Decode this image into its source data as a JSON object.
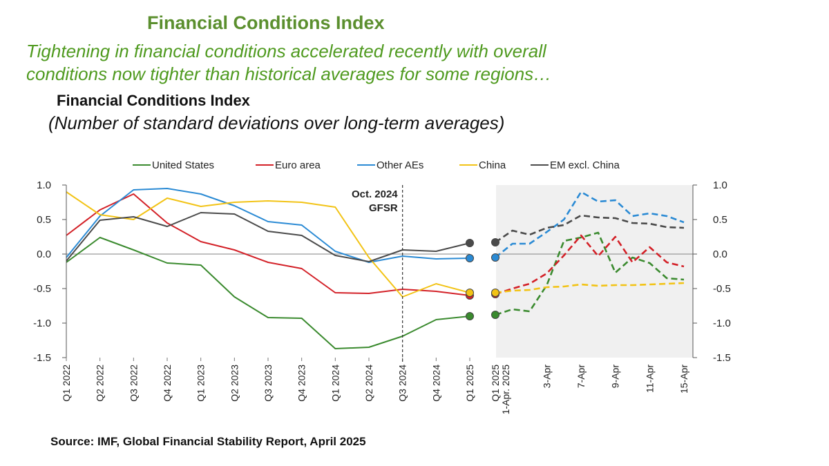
{
  "header": {
    "title": "Financial Conditions Index",
    "subtitle_line1": "Tightening in financial conditions accelerated recently with overall",
    "subtitle_line2": "conditions now tighter than historical averages for some regions…"
  },
  "source": "Source: IMF, Global Financial Stability Report, April 2025",
  "chart_data": {
    "type": "line",
    "title": "Financial Conditions Index",
    "subtitle": "(Number of standard deviations over long-term averages)",
    "ylim": [
      -1.5,
      1.0
    ],
    "yticks": [
      "1.0",
      "0.5",
      "0.0",
      "-0.5",
      "-1.0",
      "-1.5"
    ],
    "annotation": [
      "Oct. 2024",
      "GFSR"
    ],
    "annotation_at": "Q3 2024",
    "legend_position": "top",
    "left_panel": {
      "categories": [
        "Q1 2022",
        "Q2 2022",
        "Q3 2022",
        "Q4 2022",
        "Q1 2023",
        "Q2 2023",
        "Q3 2023",
        "Q4 2023",
        "Q1 2024",
        "Q2 2024",
        "Q3 2024",
        "Q4 2024",
        "Q1 2025"
      ]
    },
    "right_panel": {
      "tick_labels": [
        "Q1 2025",
        "1-Apr. 2025",
        "3-Apr",
        "7-Apr",
        "9-Apr",
        "11-Apr",
        "15-Apr"
      ],
      "tick_positions": [
        0,
        0.6,
        3,
        5,
        7,
        9,
        11
      ],
      "x_points": [
        0,
        1,
        2,
        3,
        4,
        5,
        6,
        7,
        8,
        9,
        10,
        11
      ]
    },
    "series": [
      {
        "name": "United States",
        "color": "#3a8a2e",
        "values": [
          -0.12,
          0.24,
          0.06,
          -0.13,
          -0.16,
          -0.62,
          -0.92,
          -0.93,
          -1.37,
          -1.35,
          -1.19,
          -0.95,
          -0.9
        ],
        "daily": [
          -0.88,
          -0.8,
          -0.83,
          -0.45,
          0.19,
          0.24,
          0.31,
          -0.27,
          -0.05,
          -0.13,
          -0.35,
          -0.37
        ]
      },
      {
        "name": "Euro area",
        "color": "#d32027",
        "values": [
          0.27,
          0.64,
          0.87,
          0.45,
          0.18,
          0.06,
          -0.12,
          -0.21,
          -0.56,
          -0.57,
          -0.51,
          -0.54,
          -0.6
        ],
        "daily": [
          -0.58,
          -0.5,
          -0.43,
          -0.28,
          -0.02,
          0.27,
          -0.03,
          0.25,
          -0.12,
          0.1,
          -0.12,
          -0.18
        ]
      },
      {
        "name": "Other AEs",
        "color": "#2a8ad4",
        "values": [
          -0.05,
          0.55,
          0.93,
          0.95,
          0.87,
          0.7,
          0.47,
          0.42,
          0.04,
          -0.12,
          -0.03,
          -0.07,
          -0.06
        ],
        "daily": [
          -0.05,
          0.15,
          0.15,
          0.32,
          0.5,
          0.9,
          0.76,
          0.78,
          0.55,
          0.59,
          0.55,
          0.46
        ]
      },
      {
        "name": "China",
        "color": "#f2c315",
        "values": [
          0.9,
          0.57,
          0.5,
          0.81,
          0.69,
          0.75,
          0.77,
          0.75,
          0.68,
          -0.05,
          -0.62,
          -0.43,
          -0.56
        ],
        "daily": [
          -0.56,
          -0.53,
          -0.52,
          -0.48,
          -0.47,
          -0.44,
          -0.46,
          -0.45,
          -0.45,
          -0.44,
          -0.43,
          -0.42
        ]
      },
      {
        "name": "EM excl. China",
        "color": "#4a4a4a",
        "values": [
          -0.1,
          0.49,
          0.54,
          0.4,
          0.6,
          0.58,
          0.33,
          0.27,
          -0.02,
          -0.11,
          0.06,
          0.04,
          0.16
        ],
        "daily": [
          0.17,
          0.34,
          0.28,
          0.38,
          0.42,
          0.56,
          0.53,
          0.52,
          0.45,
          0.44,
          0.39,
          0.38
        ]
      }
    ]
  }
}
